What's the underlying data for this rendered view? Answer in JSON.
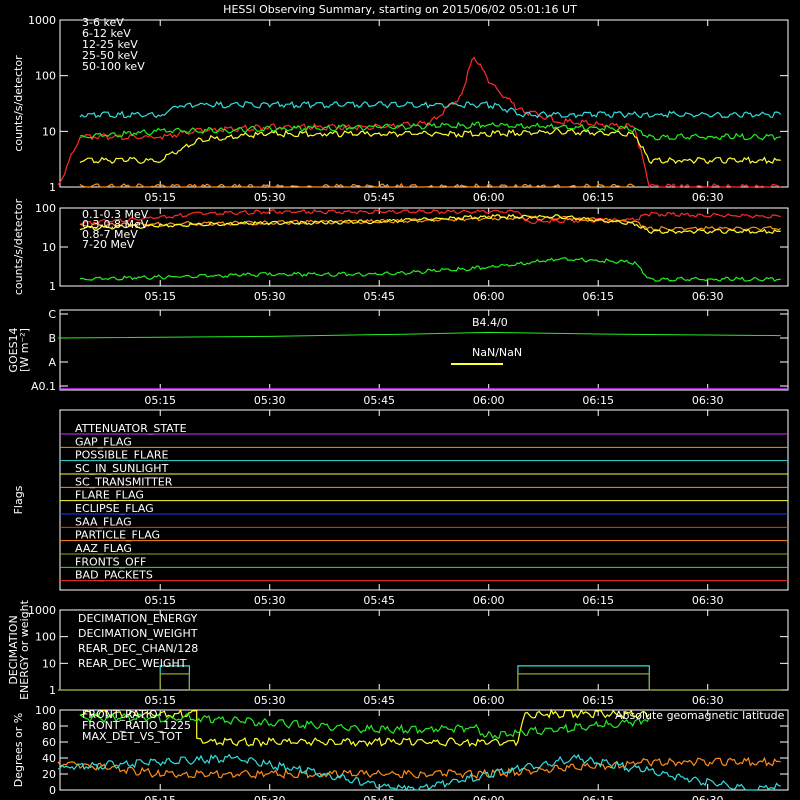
{
  "title": "HESSI Observing Summary, starting on 2015/06/02 05:01:16 UT",
  "time_ticks": [
    "05:15",
    "05:30",
    "05:45",
    "06:00",
    "06:15",
    "06:30"
  ],
  "colors": {
    "red": "#ff2a2a",
    "orange": "#ff8c1a",
    "yellow": "#ffff33",
    "green": "#22ee22",
    "cyan": "#33dddd",
    "blue": "#2233ff",
    "magenta": "#cc33ff",
    "olive": "#a0a020",
    "white": "#ffffff"
  },
  "chart_data": [
    {
      "type": "line",
      "name": "lightcurve-low",
      "ylabel": "counts/s/detector",
      "scale": "log",
      "ylim": [
        1,
        1000
      ],
      "yticks": [
        "1",
        "10",
        "100",
        "1000"
      ],
      "legend": [
        "3-6 keV",
        "6-12 keV",
        "12-25 keV",
        "25-50 keV",
        "50-100 keV"
      ],
      "series": [
        {
          "name": "3-6 keV",
          "color": "#ff2a2a",
          "x": [
            "05:01",
            "05:04",
            "05:15",
            "05:20",
            "05:30",
            "05:45",
            "05:52",
            "05:56",
            "05:58",
            "06:00",
            "06:04",
            "06:10",
            "06:20",
            "06:22",
            "06:40"
          ],
          "values": [
            1,
            8,
            8,
            10,
            12,
            12,
            14,
            40,
            230,
            80,
            25,
            15,
            12,
            1,
            1
          ]
        },
        {
          "name": "6-12 keV",
          "color": "#ff8c1a",
          "x": [
            "05:04",
            "05:15",
            "05:30",
            "05:45",
            "05:56",
            "05:58",
            "06:00",
            "06:04",
            "06:20"
          ],
          "values": [
            1,
            1,
            1,
            1,
            1,
            1,
            1,
            1,
            1
          ]
        },
        {
          "name": "12-25 keV",
          "color": "#ffff33",
          "x": [
            "05:04",
            "05:15",
            "05:20",
            "05:30",
            "05:45",
            "06:00",
            "06:10",
            "06:20",
            "06:22",
            "06:40"
          ],
          "values": [
            3,
            3,
            7,
            9,
            9,
            9,
            10,
            9,
            3,
            3
          ]
        },
        {
          "name": "25-50 keV",
          "color": "#22ee22",
          "x": [
            "05:04",
            "05:15",
            "05:30",
            "05:45",
            "06:00",
            "06:10",
            "06:20",
            "06:22",
            "06:40"
          ],
          "values": [
            8,
            10,
            11,
            12,
            13,
            12,
            11,
            8,
            8
          ]
        },
        {
          "name": "50-100 keV",
          "color": "#33dddd",
          "x": [
            "05:04",
            "05:15",
            "05:18",
            "05:30",
            "05:45",
            "06:00",
            "06:05",
            "06:10",
            "06:20",
            "06:22",
            "06:40"
          ],
          "values": [
            20,
            20,
            30,
            30,
            30,
            30,
            20,
            20,
            20,
            20,
            20
          ]
        }
      ]
    },
    {
      "type": "line",
      "name": "lightcurve-high",
      "ylabel": "counts/s/detector",
      "scale": "log",
      "ylim": [
        1,
        100
      ],
      "yticks": [
        "1",
        "10",
        "100"
      ],
      "legend": [
        "0.1-0.3 MeV",
        "0.3-0.8 MeV",
        "0.8-7 MeV",
        "7-20 MeV"
      ],
      "series": [
        {
          "name": "0.1-0.3 MeV",
          "color": "#ff2a2a",
          "x": [
            "05:04",
            "05:20",
            "05:30",
            "05:45",
            "06:04",
            "06:05",
            "06:20",
            "06:22",
            "06:40"
          ],
          "values": [
            40,
            70,
            80,
            80,
            80,
            45,
            50,
            70,
            60
          ]
        },
        {
          "name": "0.3-0.8 MeV",
          "color": "#ff8c1a",
          "x": [
            "05:04",
            "05:20",
            "05:45",
            "06:00",
            "06:10",
            "06:20",
            "06:22",
            "06:40"
          ],
          "values": [
            35,
            40,
            45,
            55,
            55,
            45,
            30,
            30
          ]
        },
        {
          "name": "0.8-7 MeV",
          "color": "#ffff33",
          "x": [
            "05:04",
            "05:20",
            "05:45",
            "06:00",
            "06:10",
            "06:20",
            "06:22",
            "06:40"
          ],
          "values": [
            30,
            38,
            45,
            60,
            60,
            40,
            25,
            25
          ]
        },
        {
          "name": "7-20 MeV",
          "color": "#22ee22",
          "x": [
            "05:04",
            "05:30",
            "05:45",
            "06:00",
            "06:10",
            "06:20",
            "06:22",
            "06:40"
          ],
          "values": [
            1.5,
            2,
            2,
            3,
            5,
            4,
            1.5,
            1.5
          ]
        }
      ]
    },
    {
      "type": "line",
      "name": "goes",
      "ylabel": "GOES14\n[W m⁻²]",
      "yticks": [
        "A0.1",
        "A",
        "B",
        "C"
      ],
      "annotations": [
        "B4.4/0",
        "NaN/NaN"
      ],
      "series": [
        {
          "name": "goes",
          "color": "#22ee22",
          "x": [
            "05:01",
            "05:30",
            "05:50",
            "06:00",
            "06:15",
            "06:40"
          ],
          "values": [
            0.65,
            0.67,
            0.7,
            0.72,
            0.7,
            0.68
          ]
        }
      ]
    },
    {
      "type": "line",
      "name": "flags",
      "ylabel": "Flags",
      "flags": [
        {
          "label": "ATTENUATOR_STATE",
          "color": "#cc33ff"
        },
        {
          "label": "GAP_FLAG",
          "color": "#ff8c1a"
        },
        {
          "label": "POSSIBLE_FLARE",
          "color": "#33dddd"
        },
        {
          "label": "SC_IN_SUNLIGHT",
          "color": "#ffff33"
        },
        {
          "label": "SC_TRANSMITTER",
          "color": "#ff8c1a"
        },
        {
          "label": "FLARE_FLAG",
          "color": "#ffff33"
        },
        {
          "label": "ECLIPSE_FLAG",
          "color": "#2233ff"
        },
        {
          "label": "SAA_FLAG",
          "color": "#ff2a2a"
        },
        {
          "label": "PARTICLE_FLAG",
          "color": "#ff8c1a"
        },
        {
          "label": "AAZ_FLAG",
          "color": "#a0a020"
        },
        {
          "label": "FRONTS_OFF",
          "color": "#22ee22"
        },
        {
          "label": "BAD_PACKETS",
          "color": "#ff2a2a"
        }
      ]
    },
    {
      "type": "line",
      "name": "decimation",
      "ylabel": "DECIMATION\nENERGY or weight",
      "scale": "log",
      "ylim": [
        1,
        1000
      ],
      "yticks": [
        "1",
        "10",
        "100",
        "1000"
      ],
      "legend": [
        "DECIMATION_ENERGY",
        "DECIMATION_WEIGHT",
        "REAR_DEC_CHAN/128",
        "REAR_DEC_WEIGHT"
      ],
      "series": [
        {
          "name": "REAR_DEC_CHAN/128",
          "color": "#33dddd",
          "x": [
            "05:01",
            "05:15",
            "05:15",
            "05:19",
            "05:19",
            "06:04",
            "06:04",
            "06:22",
            "06:22",
            "06:40"
          ],
          "values": [
            1,
            1,
            8,
            8,
            1,
            1,
            8,
            8,
            1,
            1
          ]
        },
        {
          "name": "REAR_DEC_WEIGHT",
          "color": "#a0a020",
          "x": [
            "05:01",
            "05:15",
            "05:15",
            "05:19",
            "05:19",
            "06:04",
            "06:04",
            "06:22",
            "06:22",
            "06:40"
          ],
          "values": [
            1,
            1,
            4,
            4,
            1,
            1,
            4,
            4,
            1,
            1
          ]
        }
      ]
    },
    {
      "type": "line",
      "name": "ratios",
      "ylabel": "Degrees or %",
      "ylim": [
        0,
        100
      ],
      "yticks": [
        "0",
        "20",
        "40",
        "60",
        "80",
        "100"
      ],
      "legend": [
        "FRONT_RATIO",
        "FRONT_RATIO_1225",
        "MAX_DET_VS_TOT"
      ],
      "annotation": "Absolute geomagnetic latitude",
      "series": [
        {
          "name": "FRONT_RATIO",
          "color": "#ffff33",
          "x": [
            "05:04",
            "05:20",
            "05:20",
            "06:04",
            "06:05",
            "06:22"
          ],
          "values": [
            95,
            95,
            60,
            60,
            95,
            95
          ]
        },
        {
          "name": "FRONT_RATIO_1225",
          "color": "#22ee22",
          "x": [
            "05:04",
            "05:20",
            "05:45",
            "05:58",
            "06:00",
            "06:20",
            "06:22"
          ],
          "values": [
            90,
            90,
            75,
            78,
            68,
            85,
            90
          ]
        },
        {
          "name": "MAX_DET_VS_TOT",
          "color": "#ff8c1a",
          "x": [
            "05:01",
            "05:15",
            "05:30",
            "06:00",
            "06:22",
            "06:40"
          ],
          "values": [
            35,
            20,
            20,
            20,
            35,
            35
          ]
        },
        {
          "name": "Absolute geomagnetic latitude",
          "color": "#33dddd",
          "x": [
            "05:01",
            "05:25",
            "05:49",
            "06:12",
            "06:36",
            "06:40"
          ],
          "values": [
            28,
            40,
            0,
            40,
            0,
            5
          ]
        }
      ]
    }
  ]
}
